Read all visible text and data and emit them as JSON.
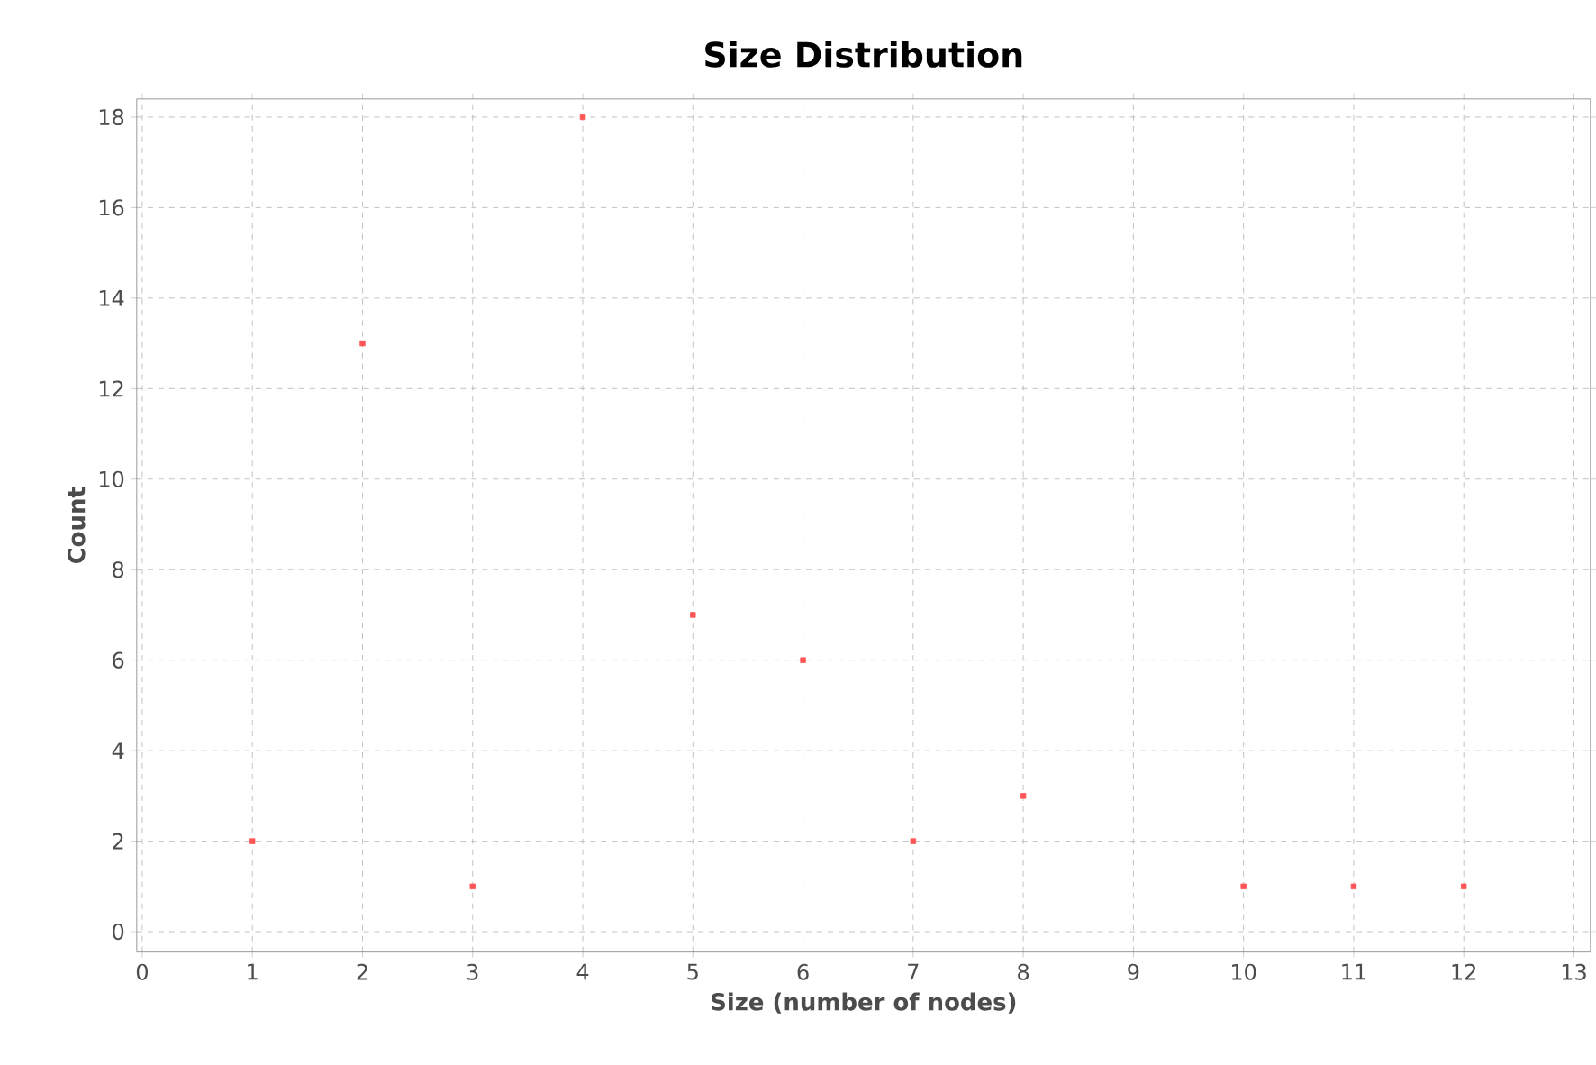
{
  "chart_data": {
    "type": "scatter",
    "title": "Size Distribution",
    "xlabel": "Size (number of nodes)",
    "ylabel": "Count",
    "x": [
      1,
      2,
      3,
      4,
      5,
      6,
      7,
      8,
      10,
      11,
      12
    ],
    "series": [
      {
        "color": "#ff5555",
        "values": [
          2,
          13,
          1,
          18,
          7,
          6,
          2,
          3,
          1,
          1,
          1
        ]
      }
    ],
    "xlim": [
      -0.05,
      13.15
    ],
    "ylim": [
      -0.45,
      18.4
    ],
    "xticks": [
      0,
      1,
      2,
      3,
      4,
      5,
      6,
      7,
      8,
      9,
      10,
      11,
      12,
      13
    ],
    "yticks": [
      0,
      2,
      4,
      6,
      8,
      10,
      12,
      14,
      16,
      18
    ],
    "grid": true,
    "marker": "square"
  }
}
